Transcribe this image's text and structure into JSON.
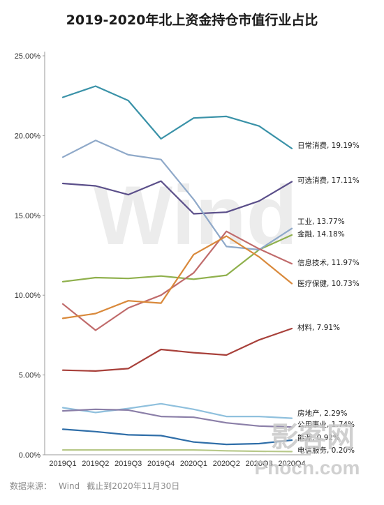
{
  "title": "2019-2020年北上资金持仓市值行业占比",
  "footer": {
    "source_label": "数据来源：",
    "source": "Wind",
    "cutoff": "截止到2020年11月30日"
  },
  "watermark": "Wind",
  "site_mark": {
    "top": "影客网",
    "bottom": "Phocn.com"
  },
  "chart_data": {
    "type": "line",
    "title": "2019-2020年北上资金持仓市值行业占比",
    "categories": [
      "2019Q1",
      "2019Q2",
      "2019Q3",
      "2019Q4",
      "2020Q1",
      "2020Q2",
      "2020Q3",
      "2020Q4"
    ],
    "y_ticks": [
      "0.00%",
      "5.00%",
      "10.00%",
      "15.00%",
      "20.00%",
      "25.00%"
    ],
    "ylim": [
      0,
      25
    ],
    "grid": false,
    "legend": "labels at line ends, right",
    "series": [
      {
        "name": "日常消费",
        "label": "日常消费, 19.19%",
        "color": "#3a92a8",
        "values": [
          22.4,
          23.1,
          22.2,
          19.8,
          21.1,
          21.2,
          20.6,
          19.19
        ]
      },
      {
        "name": "可选消费",
        "label": "可选消费, 17.11%",
        "color": "#5b4f8a",
        "values": [
          17.0,
          16.85,
          16.3,
          17.15,
          15.1,
          15.2,
          15.9,
          17.11
        ]
      },
      {
        "name": "工业",
        "label": "工业, 13.77%",
        "color": "#8fb04c",
        "values": [
          10.85,
          11.1,
          11.05,
          11.2,
          11.0,
          11.25,
          12.85,
          13.77
        ]
      },
      {
        "name": "金融",
        "label": "金融, 14.18%",
        "color": "#8fa9c9",
        "values": [
          18.65,
          19.7,
          18.8,
          18.5,
          16.0,
          13.05,
          12.85,
          14.18
        ]
      },
      {
        "name": "信息技术",
        "label": "信息技术, 11.97%",
        "color": "#c06b6b",
        "values": [
          9.45,
          7.8,
          9.2,
          10.0,
          11.4,
          14.0,
          12.9,
          11.97
        ]
      },
      {
        "name": "医疗保健",
        "label": "医疗保健, 10.73%",
        "color": "#d9893b",
        "values": [
          8.55,
          8.85,
          9.65,
          9.5,
          12.55,
          13.7,
          12.4,
          10.73
        ]
      },
      {
        "name": "材料",
        "label": "材料, 7.91%",
        "color": "#a8403a",
        "values": [
          5.3,
          5.25,
          5.4,
          6.6,
          6.4,
          6.25,
          7.2,
          7.91
        ]
      },
      {
        "name": "房地产",
        "label": "房地产, 2.29%",
        "color": "#8fc0dd",
        "values": [
          2.95,
          2.65,
          2.9,
          3.2,
          2.85,
          2.4,
          2.4,
          2.29
        ]
      },
      {
        "name": "公用事业",
        "label": "公用事业, 1.74%",
        "color": "#8b7fa8",
        "values": [
          2.75,
          2.85,
          2.8,
          2.4,
          2.35,
          2.0,
          1.8,
          1.74
        ]
      },
      {
        "name": "能源",
        "label": "能源, 0.92%",
        "color": "#2f6ea8",
        "values": [
          1.6,
          1.45,
          1.25,
          1.2,
          0.8,
          0.65,
          0.7,
          0.92
        ]
      },
      {
        "name": "电信服务",
        "label": "电信服务, 0.20%",
        "color": "#b8c98a",
        "values": [
          0.3,
          0.3,
          0.3,
          0.3,
          0.3,
          0.25,
          0.22,
          0.2
        ]
      }
    ]
  }
}
